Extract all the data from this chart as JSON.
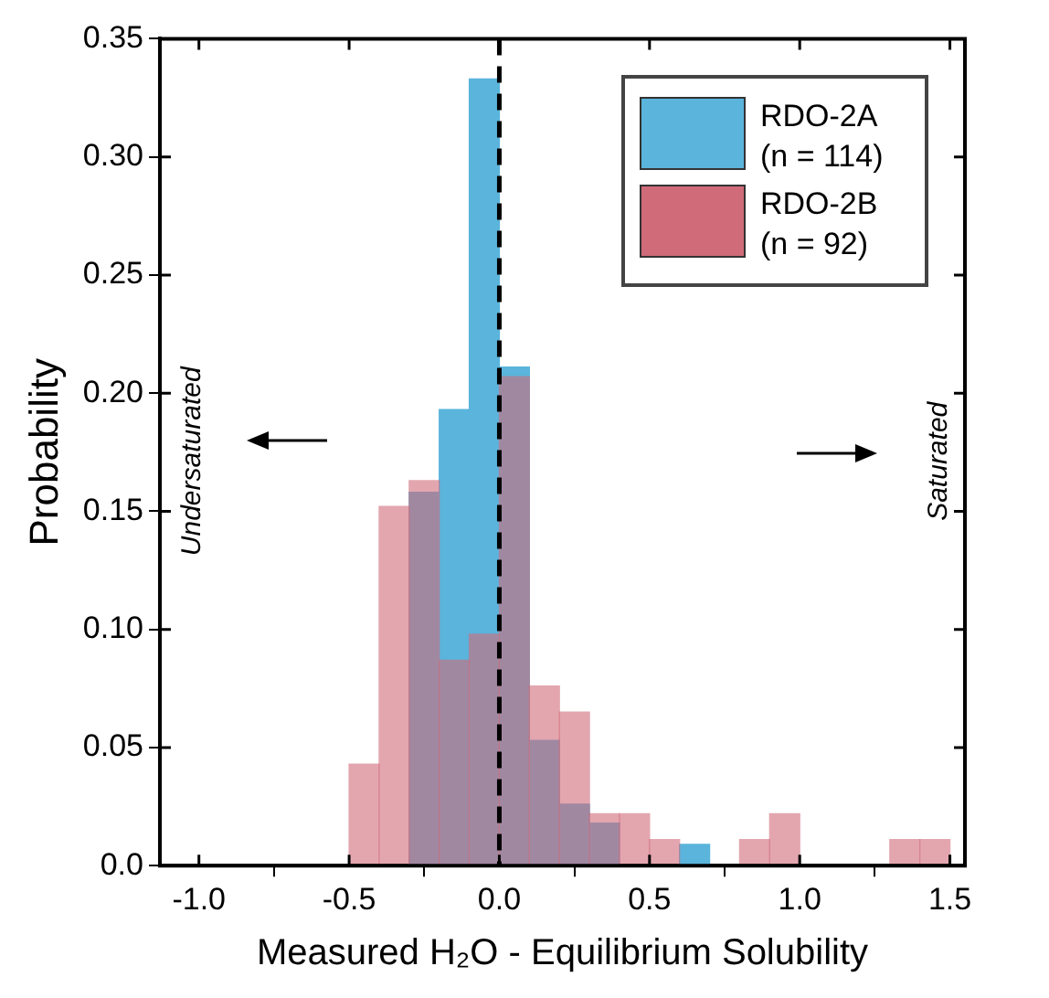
{
  "chart_data": {
    "type": "histogram",
    "xlabel": "Measured H₂O - Equilibrium Solubility",
    "ylabel": "Probability",
    "bins": [
      -0.5,
      -0.4,
      -0.3,
      -0.2,
      -0.1,
      0.0,
      0.1,
      0.2,
      0.3,
      0.4,
      0.5,
      0.6,
      0.7,
      0.8,
      0.9,
      1.0,
      1.1,
      1.2,
      1.3,
      1.4,
      1.5
    ],
    "series": [
      {
        "name": "RDO-2A (n = 114)",
        "color": "#5ab4dc",
        "values": [
          0,
          0,
          0.158,
          0.193,
          0.333,
          0.211,
          0.053,
          0.026,
          0.018,
          0,
          0,
          0.009,
          0,
          0,
          0,
          0,
          0,
          0,
          0,
          0
        ]
      },
      {
        "name": "RDO-2B (n = 92)",
        "color": "#d06b7a",
        "values": [
          0.043,
          0.152,
          0.163,
          0.087,
          0.098,
          0.207,
          0.076,
          0.065,
          0.022,
          0.022,
          0.011,
          0,
          0,
          0.011,
          0.022,
          0,
          0,
          0,
          0.011,
          0.011
        ]
      }
    ],
    "xlim": [
      -1.13,
      1.55
    ],
    "xticks": [
      {
        "value": -1,
        "label": "-1.0"
      },
      {
        "value": -0.5,
        "label": "-0.5"
      },
      {
        "value": 0,
        "label": "0.0"
      },
      {
        "value": 0.5,
        "label": "0.5"
      },
      {
        "value": 1,
        "label": "1.0"
      },
      {
        "value": 1.5,
        "label": "1.5"
      }
    ],
    "ylim": [
      0,
      0.35
    ],
    "yticks": [
      {
        "value": 0,
        "label": "0.0"
      },
      0.05,
      {
        "value": 0.1,
        "label": "0.10"
      },
      0.15,
      {
        "value": 0.2,
        "label": "0.20"
      },
      0.25,
      {
        "value": 0.3,
        "label": "0.30"
      },
      0.35
    ],
    "ref_lines": [
      {
        "axis": "x",
        "value": 0,
        "line_style": "dashed",
        "color": "#000000"
      }
    ],
    "annotations": [
      "Undersaturated",
      "Saturated"
    ],
    "legend": "top right",
    "grid": false
  }
}
